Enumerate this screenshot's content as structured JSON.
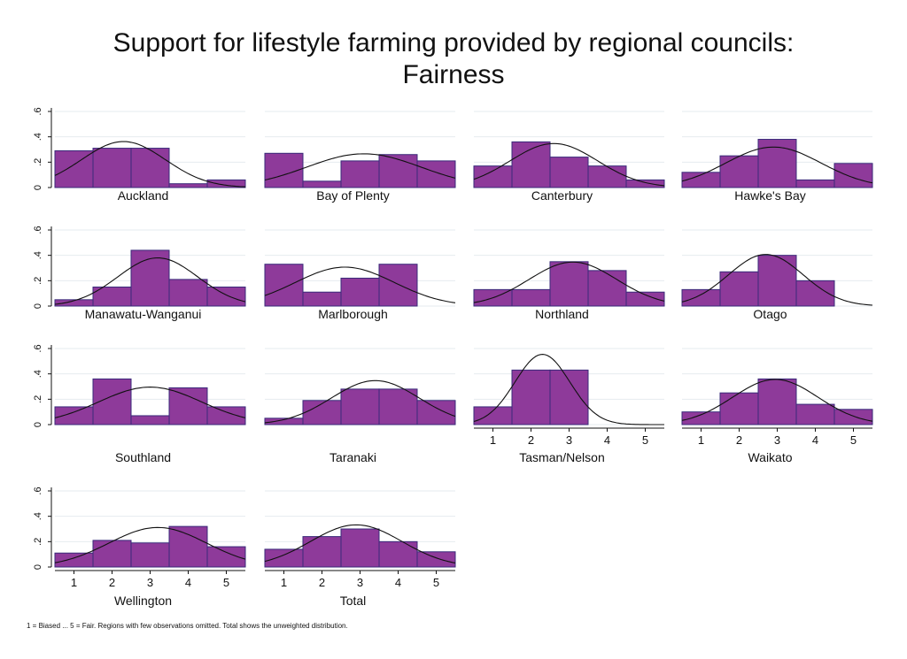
{
  "chart_data": {
    "type": "bar",
    "title": [
      "Support for lifestyle farming provided by regional councils:",
      "Fairness"
    ],
    "note": "1 = Biased ... 5 = Fair. Regions with few observations omitted. Total shows the unweighted distribution.",
    "x_ticks": [
      "1",
      "2",
      "3",
      "4",
      "5"
    ],
    "y_ticks": [
      "0",
      ".2",
      ".4",
      ".6"
    ],
    "ylim": [
      0,
      0.6
    ],
    "xlim": [
      0.5,
      5.5
    ],
    "bar_color": "#8e3a9a",
    "panels": [
      {
        "name": "Auckland",
        "values": [
          0.29,
          0.31,
          0.31,
          0.03,
          0.06
        ],
        "mean": 2.3,
        "sd": 1.1
      },
      {
        "name": "Bay of Plenty",
        "values": [
          0.27,
          0.05,
          0.21,
          0.26,
          0.21
        ],
        "mean": 3.1,
        "sd": 1.5
      },
      {
        "name": "Canterbury",
        "values": [
          0.17,
          0.36,
          0.24,
          0.17,
          0.06
        ],
        "mean": 2.6,
        "sd": 1.15
      },
      {
        "name": "Hawke's Bay",
        "values": [
          0.12,
          0.25,
          0.38,
          0.06,
          0.19
        ],
        "mean": 2.9,
        "sd": 1.25
      },
      {
        "name": "Manawatu-Wanganui",
        "values": [
          0.05,
          0.15,
          0.44,
          0.21,
          0.15
        ],
        "mean": 3.2,
        "sd": 1.05
      },
      {
        "name": "Marlborough",
        "values": [
          0.33,
          0.11,
          0.22,
          0.33,
          0.0
        ],
        "mean": 2.6,
        "sd": 1.3
      },
      {
        "name": "Northland",
        "values": [
          0.13,
          0.13,
          0.35,
          0.28,
          0.11
        ],
        "mean": 3.1,
        "sd": 1.15
      },
      {
        "name": "Otago",
        "values": [
          0.13,
          0.27,
          0.4,
          0.2,
          0.0
        ],
        "mean": 2.7,
        "sd": 0.98
      },
      {
        "name": "Southland",
        "values": [
          0.14,
          0.36,
          0.07,
          0.29,
          0.14
        ],
        "mean": 3.0,
        "sd": 1.35
      },
      {
        "name": "Taranaki",
        "values": [
          0.05,
          0.19,
          0.28,
          0.28,
          0.19
        ],
        "mean": 3.4,
        "sd": 1.15
      },
      {
        "name": "Tasman/Nelson",
        "values": [
          0.14,
          0.43,
          0.43,
          0.0,
          0.0
        ],
        "mean": 2.3,
        "sd": 0.72
      },
      {
        "name": "Waikato",
        "values": [
          0.1,
          0.25,
          0.36,
          0.16,
          0.12
        ],
        "mean": 2.95,
        "sd": 1.12
      },
      {
        "name": "Wellington",
        "values": [
          0.11,
          0.21,
          0.19,
          0.32,
          0.16
        ],
        "mean": 3.2,
        "sd": 1.28
      },
      {
        "name": "Total",
        "values": [
          0.14,
          0.24,
          0.3,
          0.2,
          0.12
        ],
        "mean": 2.9,
        "sd": 1.2
      }
    ]
  }
}
